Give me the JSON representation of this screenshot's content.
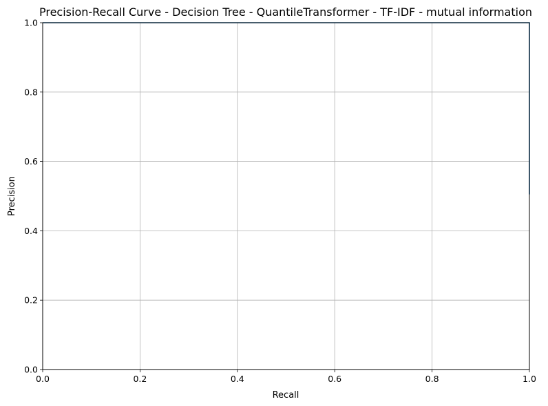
{
  "chart_data": {
    "type": "line",
    "title": "Precision-Recall Curve - Decision Tree - QuantileTransformer - TF-IDF - mutual information",
    "xlabel": "Recall",
    "ylabel": "Precision",
    "xlim": [
      0,
      1
    ],
    "ylim": [
      0,
      1
    ],
    "xticks": [
      "0.0",
      "0.2",
      "0.4",
      "0.6",
      "0.8",
      "1.0"
    ],
    "yticks": [
      "0.0",
      "0.2",
      "0.4",
      "0.6",
      "0.8",
      "1.0"
    ],
    "grid": true,
    "series": [
      {
        "color": "#1f77b4",
        "x": [
          0.0,
          1.0,
          1.0
        ],
        "y": [
          1.0,
          1.0,
          0.505
        ]
      }
    ]
  }
}
